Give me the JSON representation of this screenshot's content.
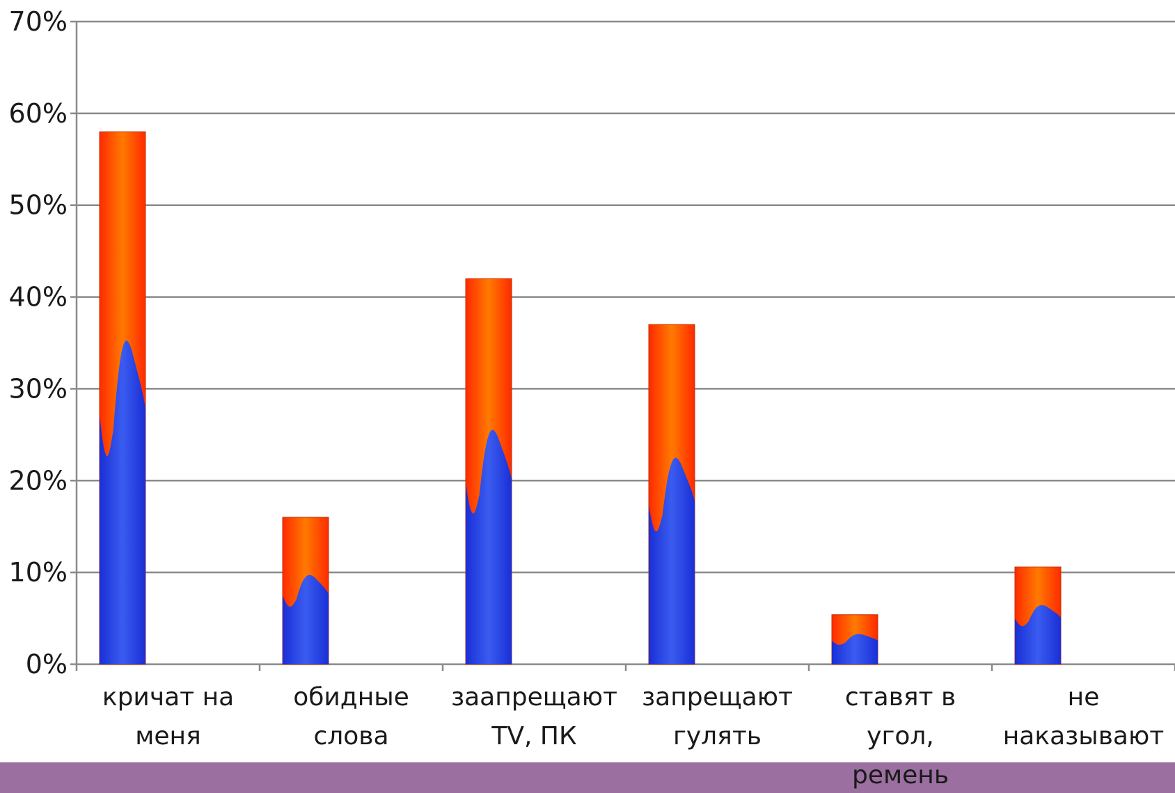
{
  "chart_data": {
    "type": "bar",
    "categories": [
      [
        "кричат на",
        "меня"
      ],
      [
        "обидные",
        "слова"
      ],
      [
        "заапрещают",
        "TV, ПК"
      ],
      [
        "запрещают",
        "гулять"
      ],
      [
        "ставят в",
        "угол,",
        "ремень"
      ],
      [
        "не",
        "наказывают"
      ]
    ],
    "values": [
      58,
      16,
      42,
      37,
      5.4,
      10.6
    ],
    "ylim": [
      0,
      70
    ],
    "yticks": [
      0,
      10,
      20,
      30,
      40,
      50,
      60,
      70
    ],
    "ytick_labels": [
      "0%",
      "10%",
      "20%",
      "30%",
      "40%",
      "50%",
      "60%",
      "70%"
    ],
    "grid": true,
    "legend": "none",
    "colors": {
      "bar_top": "#ff2a00",
      "bar_top_light": "#ff7a00",
      "bar_bottom": "#1a2fd6",
      "bar_bottom_light": "#3a5cf0",
      "grid": "#8a8a8a",
      "axis": "#8a8a8a",
      "footer_band": "#9b6fa0"
    }
  }
}
